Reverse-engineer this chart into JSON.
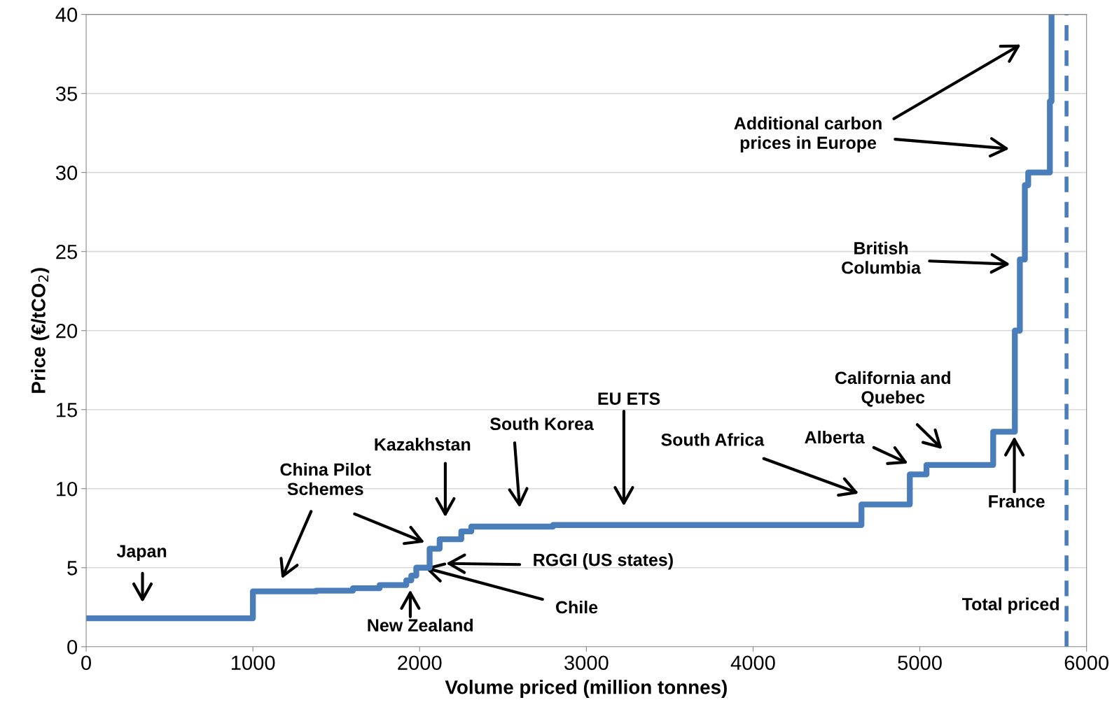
{
  "chart_data": {
    "type": "step",
    "xlabel": "Volume priced (million tonnes)",
    "ylabel": "Price (€/tCO$_{2}$)",
    "x": [
      0,
      1000,
      1380,
      1600,
      1760,
      1920,
      1950,
      1980,
      2060,
      2120,
      2250,
      2310,
      2800,
      4650,
      4940,
      5040,
      5440,
      5570,
      5600,
      5630,
      5650,
      5780,
      5790
    ],
    "series": [
      {
        "color": "#4a7ebb",
        "values": [
          1.8,
          3.5,
          3.55,
          3.7,
          3.9,
          4.2,
          4.5,
          5.0,
          6.2,
          6.8,
          7.3,
          7.6,
          7.7,
          9.0,
          10.9,
          11.5,
          13.6,
          20,
          24.5,
          29.2,
          30,
          34.5,
          40
        ]
      }
    ],
    "xlim": [
      0,
      6000
    ],
    "xticks": [
      0,
      1000,
      2000,
      3000,
      4000,
      5000,
      6000
    ],
    "ylim": [
      0,
      40
    ],
    "yticks": [
      0,
      5,
      10,
      15,
      20,
      25,
      30,
      35,
      40
    ],
    "grid": "y",
    "ref_lines": [
      {
        "axis": "x",
        "value": 5880,
        "label": "Total priced",
        "color": "#4a7ebb",
        "line_style": "dashed"
      }
    ],
    "annotations": [
      "Japan",
      "China Pilot\nSchemes",
      "Kazakhstan",
      "South Korea",
      "EU ETS",
      "South Africa",
      "Alberta",
      "California and\nQuebec",
      "France",
      "British\nColumbia",
      "Additional carbon\nprices in Europe",
      "RGGI (US states)",
      {
        "text": "Chile",
        "x": 2030,
        "y": 5.0
      },
      "New Zealand"
    ]
  }
}
